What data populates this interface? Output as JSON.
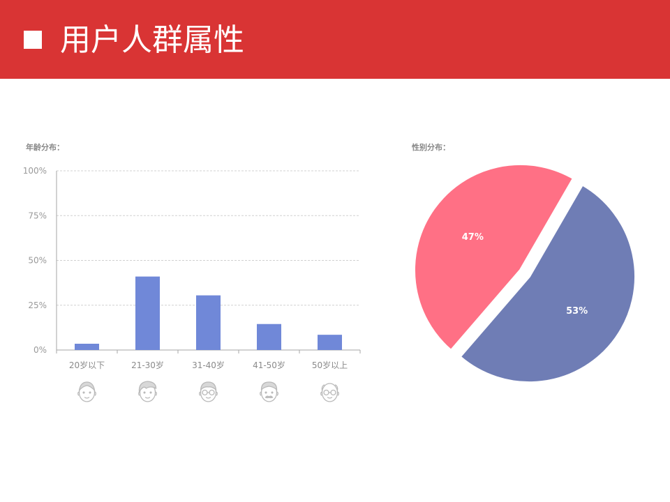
{
  "header": {
    "title": "用户人群属性",
    "bg_color": "#d93434"
  },
  "age_section": {
    "label": "年龄分布："
  },
  "gender_section": {
    "label": "性别分布："
  },
  "chart_data": [
    {
      "type": "bar",
      "categories": [
        "20岁以下",
        "21-30岁",
        "31-40岁",
        "41-50岁",
        "50岁以上"
      ],
      "values": [
        3.5,
        41,
        30.5,
        14.5,
        8.5
      ],
      "y_ticks": [
        "0%",
        "25%",
        "50%",
        "75%",
        "100%"
      ],
      "ylim": [
        0,
        100
      ],
      "grid": true,
      "bar_color": "#7088d8",
      "category_icons": [
        "child-face-icon",
        "young-man-face-icon",
        "glasses-man-face-icon",
        "mustache-man-face-icon",
        "elderly-man-face-icon"
      ]
    },
    {
      "type": "pie",
      "slices": [
        {
          "label": "47%",
          "value": 47,
          "color": "#ff7085"
        },
        {
          "label": "53%",
          "value": 53,
          "color": "#6f7db5"
        }
      ],
      "exploded": true
    }
  ]
}
